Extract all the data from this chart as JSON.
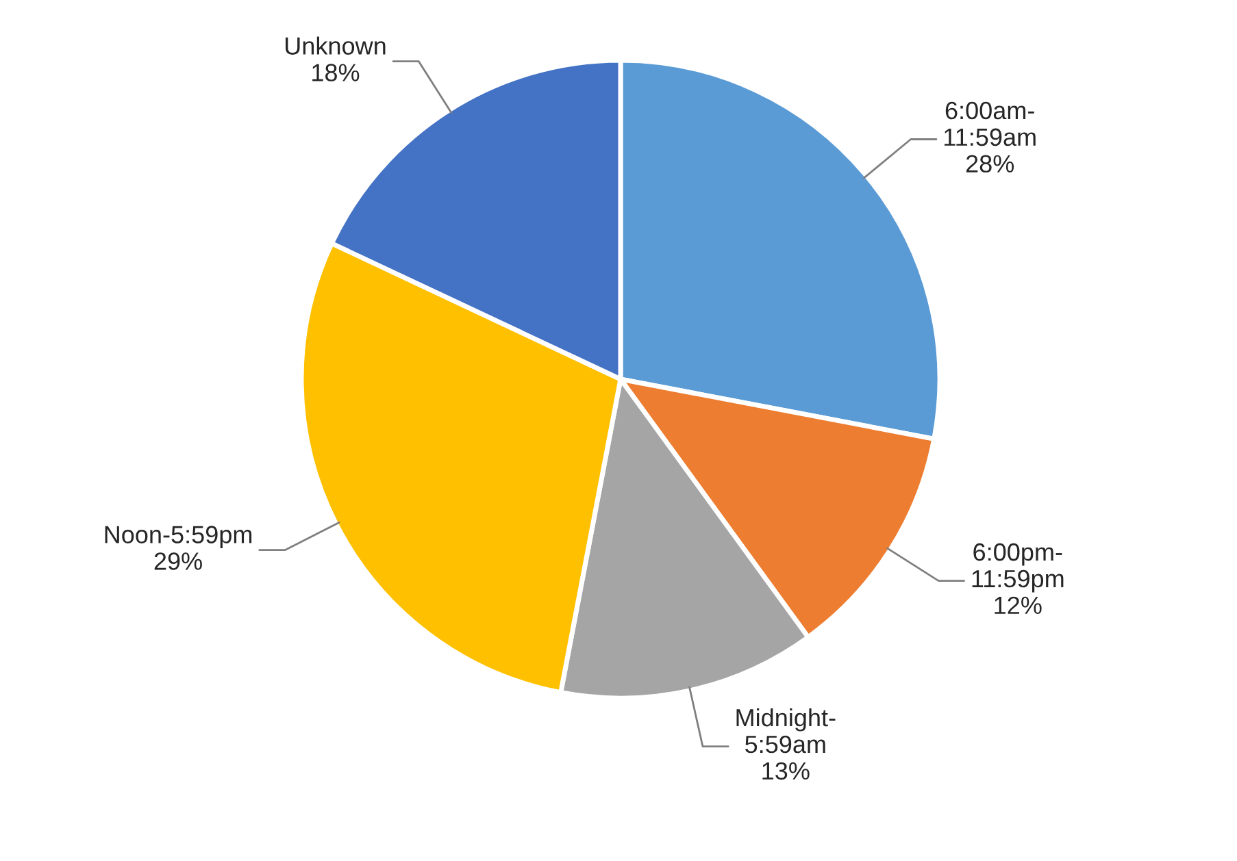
{
  "chart_data": {
    "type": "pie",
    "categories": [
      "6:00am-\n11:59am",
      "6:00pm-\n11:59pm",
      "Midnight-\n5:59am",
      "Noon-5:59pm",
      "Unknown"
    ],
    "values": [
      28,
      12,
      13,
      29,
      18
    ],
    "value_labels": [
      "28%",
      "12%",
      "13%",
      "29%",
      "18%"
    ],
    "colors": [
      "#5b9bd5",
      "#ed7d31",
      "#a5a5a5",
      "#ffc000",
      "#4472c4"
    ]
  }
}
